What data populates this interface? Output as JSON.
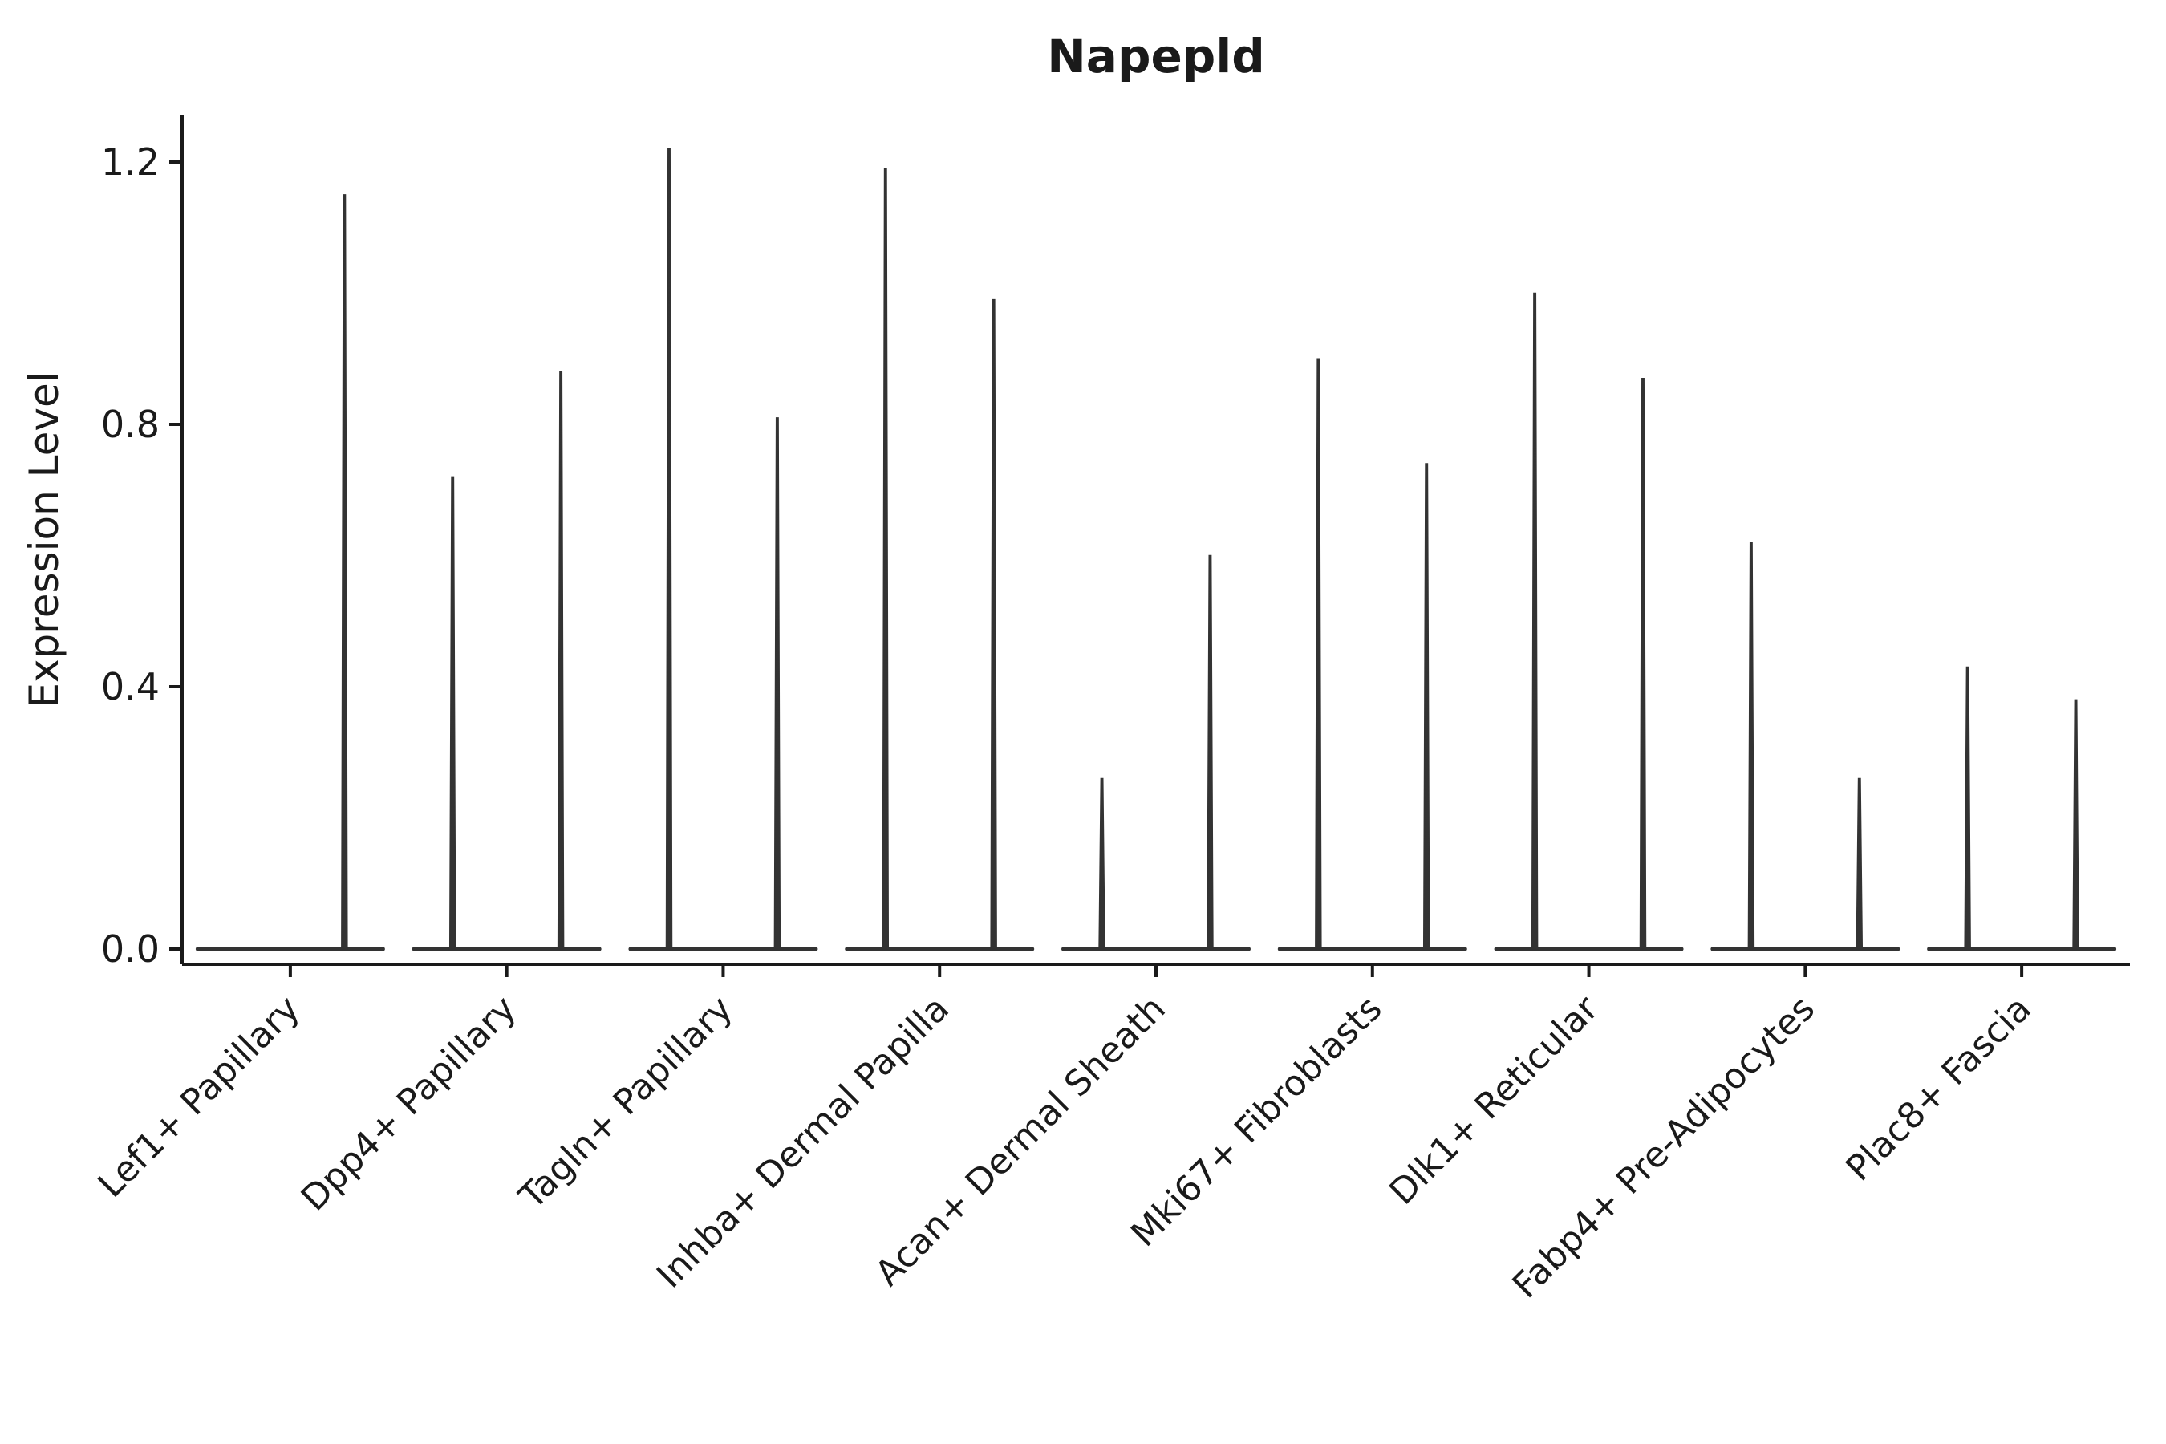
{
  "chart_data": {
    "type": "violin",
    "title": "Napepld",
    "xlabel": "",
    "ylabel": "Expression Level",
    "ylim": [
      0,
      1.27
    ],
    "yticks": [
      "0.0",
      "0.4",
      "0.8",
      "1.2"
    ],
    "ytick_values": [
      0.0,
      0.4,
      0.8,
      1.2
    ],
    "grid": false,
    "legend": "none",
    "violin_color": "#333333",
    "axis_color": "#1a1a1a",
    "categories": [
      "Lef1+ Papillary",
      "Dpp4+ Papillary",
      "Tagln+ Papillary",
      "Inhba+ Dermal Papilla",
      "Acan+ Dermal Sheath",
      "Mki67+ Fibroblasts",
      "Dlk1+ Reticular",
      "Fabp4+ Pre-Adipocytes",
      "Plac8+ Fascia"
    ],
    "series": [
      {
        "name": "violin-left",
        "max_values": [
          null,
          0.72,
          1.22,
          1.19,
          0.26,
          0.9,
          1.0,
          0.62,
          0.43
        ]
      },
      {
        "name": "violin-right",
        "max_values": [
          1.15,
          0.88,
          0.81,
          0.99,
          0.6,
          0.74,
          0.87,
          0.26,
          0.38
        ]
      }
    ],
    "baseline_value": 0.0
  }
}
